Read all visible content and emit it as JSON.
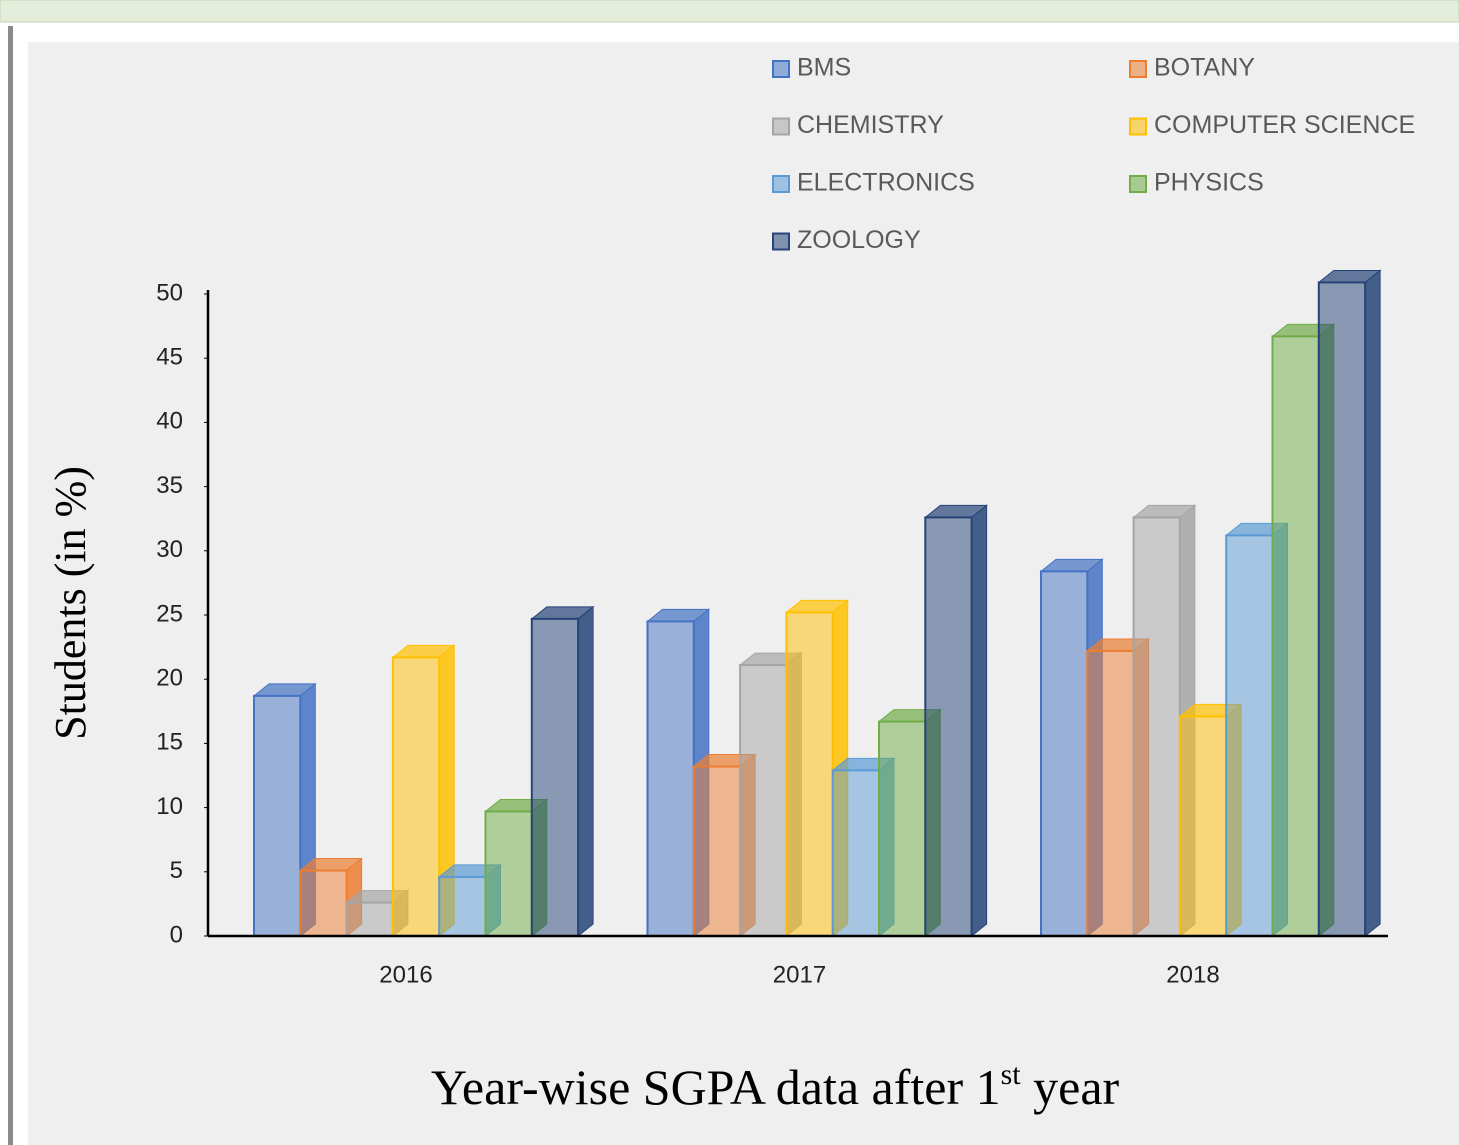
{
  "chart_data": {
    "type": "bar3d",
    "title": [
      "Year-wise  SGPA data after 1",
      "st",
      " year"
    ],
    "y_label": "Students (in %)",
    "categories": [
      "2016",
      "2017",
      "2018"
    ],
    "series": [
      {
        "name": "BMS",
        "color": "#4472c4",
        "values": [
          18.7,
          24.5,
          28.4
        ]
      },
      {
        "name": "BOTANY",
        "color": "#ed7d31",
        "values": [
          5.1,
          13.2,
          22.2
        ]
      },
      {
        "name": "CHEMISTRY",
        "color": "#a5a5a5",
        "values": [
          2.6,
          21.1,
          32.6
        ]
      },
      {
        "name": "COMPUTER SCIENCE",
        "color": "#ffc000",
        "values": [
          21.7,
          25.2,
          17.1
        ]
      },
      {
        "name": "ELECTRONICS",
        "color": "#5b9bd5",
        "values": [
          4.6,
          12.9,
          31.2
        ]
      },
      {
        "name": "PHYSICS",
        "color": "#70ad47",
        "values": [
          9.7,
          16.7,
          46.7
        ]
      },
      {
        "name": "ZOOLOGY",
        "color": "#264478",
        "values": [
          24.7,
          32.6,
          50.9
        ]
      }
    ],
    "ylim": [
      0,
      50
    ],
    "yticks": [
      0,
      5,
      10,
      15,
      20,
      25,
      30,
      35,
      40,
      45,
      50
    ],
    "legend": "top"
  }
}
